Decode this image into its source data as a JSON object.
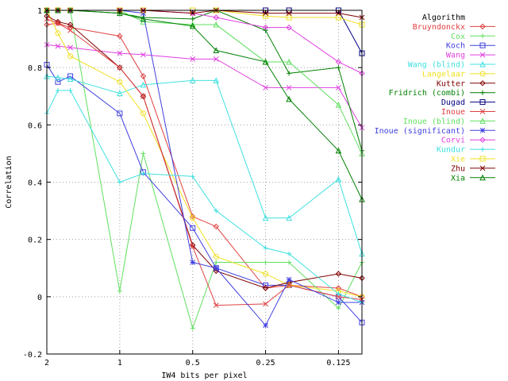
{
  "chart_data": {
    "type": "line",
    "title": "",
    "xlabel": "IW4 bits per pixel",
    "ylabel": "Correlation",
    "x": [
      2,
      1.8,
      1.6,
      1,
      0.8,
      0.5,
      0.4,
      0.25,
      0.2,
      0.125,
      0.1
    ],
    "x_scale": "log",
    "xlim": [
      2,
      0.1
    ],
    "ylim": [
      -0.2,
      1
    ],
    "x_ticks": [
      2,
      1,
      0.5,
      0.25,
      0.125
    ],
    "x_tick_labels": [
      "2",
      "1",
      "0.5",
      "0.25",
      "0.125"
    ],
    "y_ticks": [
      -0.2,
      0,
      0.2,
      0.4,
      0.6,
      0.8,
      1
    ],
    "y_tick_labels": [
      "-0.2",
      "0",
      "0.2",
      "0.4",
      "0.6",
      "0.8",
      "1"
    ],
    "grid": true,
    "legend_title": "Algorithm",
    "legend_position": "right",
    "series": [
      {
        "name": "Bruyndonckx",
        "color": "#e04040",
        "marker": "diamond",
        "values": [
          0.95,
          0.955,
          0.94,
          0.91,
          0.77,
          0.28,
          0.245,
          0.03,
          0.04,
          0.03,
          0.0
        ]
      },
      {
        "name": "Cox",
        "color": "#60e060",
        "marker": "plus",
        "values": [
          1.0,
          1.0,
          1.0,
          0.02,
          0.5,
          -0.11,
          0.12,
          0.12,
          0.12,
          -0.04,
          0.12
        ]
      },
      {
        "name": "Koch",
        "color": "#4040e0",
        "marker": "square",
        "values": [
          0.81,
          0.75,
          0.77,
          0.64,
          0.435,
          0.24,
          0.1,
          0.04,
          0.04,
          0.0,
          -0.09
        ]
      },
      {
        "name": "Wang",
        "color": "#e040e0",
        "marker": "cross",
        "values": [
          0.88,
          0.875,
          0.87,
          0.85,
          0.845,
          0.83,
          0.83,
          0.73,
          0.73,
          0.73,
          0.59
        ]
      },
      {
        "name": "Wang (blind)",
        "color": "#40e0e0",
        "marker": "triangle",
        "values": [
          0.77,
          0.765,
          0.76,
          0.71,
          0.74,
          0.755,
          0.755,
          0.275,
          0.275,
          0.41,
          0.15
        ]
      },
      {
        "name": "Langelaar",
        "color": "#f0e020",
        "marker": "circle",
        "values": [
          1.0,
          0.92,
          0.84,
          0.75,
          0.64,
          0.275,
          0.14,
          0.08,
          0.04,
          0.02,
          0.0
        ]
      },
      {
        "name": "Kutter",
        "color": "#800000",
        "marker": "diamond",
        "values": [
          0.98,
          0.96,
          0.95,
          0.8,
          0.7,
          0.18,
          0.09,
          0.03,
          0.05,
          0.08,
          0.065
        ]
      },
      {
        "name": "Fridrich (combi)",
        "color": "#008000",
        "marker": "plus",
        "values": [
          1.0,
          1.0,
          1.0,
          0.99,
          0.975,
          0.97,
          1.0,
          0.93,
          0.78,
          0.8,
          0.51
        ]
      },
      {
        "name": "Dugad",
        "color": "#000080",
        "marker": "square",
        "values": [
          1.0,
          1.0,
          1.0,
          1.0,
          1.0,
          1.0,
          1.0,
          1.0,
          1.0,
          1.0,
          0.85
        ]
      },
      {
        "name": "Inoue",
        "color": "#e04040",
        "marker": "cross",
        "values": [
          0.97,
          0.955,
          0.93,
          0.8,
          0.7,
          0.175,
          -0.03,
          -0.025,
          0.04,
          0.0,
          -0.01
        ]
      },
      {
        "name": "Inoue (blind)",
        "color": "#60e060",
        "marker": "triangle",
        "values": [
          1.0,
          1.0,
          1.0,
          1.0,
          0.96,
          0.95,
          0.95,
          0.82,
          0.82,
          0.67,
          0.5
        ]
      },
      {
        "name": "Inoue (significant)",
        "color": "#4040e0",
        "marker": "star",
        "values": [
          1.0,
          1.0,
          1.0,
          1.0,
          0.99,
          0.12,
          0.1,
          -0.1,
          0.06,
          -0.02,
          -0.02
        ]
      },
      {
        "name": "Corvi",
        "color": "#e040e0",
        "marker": "diamond",
        "values": [
          1.0,
          1.0,
          1.0,
          1.0,
          1.0,
          0.99,
          0.975,
          0.94,
          0.94,
          0.82,
          0.78
        ]
      },
      {
        "name": "Kundur",
        "color": "#40e0e0",
        "marker": "plus",
        "values": [
          0.64,
          0.72,
          0.72,
          0.4,
          0.43,
          0.42,
          0.3,
          0.17,
          0.15,
          0.01,
          -0.02
        ]
      },
      {
        "name": "Xie",
        "color": "#f0e020",
        "marker": "square",
        "values": [
          1.0,
          1.0,
          1.0,
          1.0,
          1.0,
          1.0,
          1.0,
          0.98,
          0.975,
          0.975,
          0.95
        ]
      },
      {
        "name": "Zhu",
        "color": "#800000",
        "marker": "cross",
        "values": [
          1.0,
          1.0,
          1.0,
          1.0,
          1.0,
          0.99,
          1.0,
          0.99,
          0.99,
          0.99,
          0.975
        ]
      },
      {
        "name": "Xia",
        "color": "#008000",
        "marker": "triangle",
        "values": [
          1.0,
          1.0,
          1.0,
          0.99,
          0.97,
          0.945,
          0.86,
          0.82,
          0.69,
          0.51,
          0.34
        ]
      }
    ]
  }
}
